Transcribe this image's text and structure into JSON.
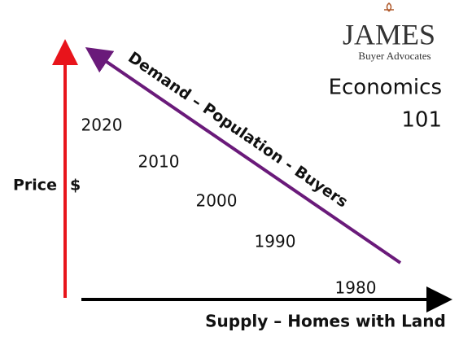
{
  "logo": {
    "name": "JAMES",
    "tagline": "Buyer Advocates"
  },
  "title": {
    "line1": "Economics",
    "line2": "101"
  },
  "axes": {
    "y_label": "Price",
    "y_unit": "$",
    "x_label": "Supply – Homes with Land"
  },
  "demand_label": "Demand – Population - Buyers",
  "years": [
    "2020",
    "2010",
    "2000",
    "1990",
    "1980"
  ]
}
